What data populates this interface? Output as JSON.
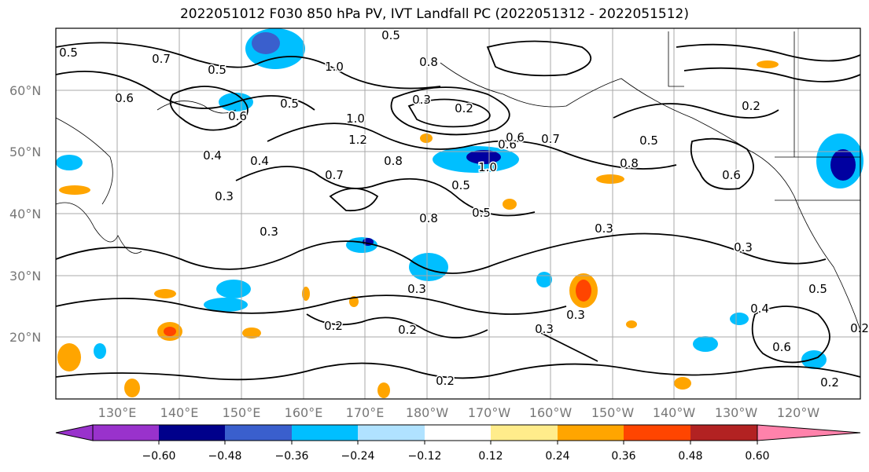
{
  "title": "2022051012 F030 850 hPa PV, IVT Landfall PC (2022051312 - 2022051512)",
  "map": {
    "lat_labels": [
      "60°N",
      "50°N",
      "40°N",
      "30°N",
      "20°N"
    ],
    "lon_labels": [
      "130°E",
      "140°E",
      "150°E",
      "160°E",
      "170°E",
      "180°W",
      "170°W",
      "160°W",
      "150°W",
      "140°W",
      "130°W",
      "120°W"
    ],
    "contour_labels": [
      "0.5",
      "0.7",
      "0.5",
      "0.6",
      "1.0",
      "0.5",
      "0.6",
      "1.0",
      "0.8",
      "0.3",
      "0.2",
      "0.5",
      "0.6",
      "0.7",
      "0.2",
      "0.4",
      "1.2",
      "0.4",
      "0.3",
      "0.8",
      "0.3",
      "0.7",
      "0.5",
      "1.0",
      "0.8",
      "0.5",
      "0.6",
      "0.6",
      "0.8",
      "0.3",
      "0.5",
      "0.3",
      "0.3",
      "0.3",
      "0.5",
      "0.2",
      "0.2",
      "0.3",
      "0.2",
      "0.2",
      "0.2",
      "0.6",
      "0.4"
    ],
    "fill_colors": {
      "neg_strong": "#0000a0",
      "neg_mid": "#3a5fcd",
      "neg_light": "#00bfff",
      "neg_pale": "#afe0ff",
      "pos_light": "#ffeb7f",
      "pos_mid": "#ffa500",
      "pos_strong": "#ff4500",
      "pos_dark": "#b22222"
    }
  },
  "colorbar": {
    "ticks": [
      "−0.60",
      "−0.48",
      "−0.36",
      "−0.24",
      "−0.12",
      "0.12",
      "0.24",
      "0.36",
      "0.48",
      "0.60"
    ],
    "colors": [
      "#9932cc",
      "#00008b",
      "#3a5fcd",
      "#00bfff",
      "#b0e2ff",
      "#ffffff",
      "#ffec8b",
      "#ffa500",
      "#ff4500",
      "#b22222",
      "#ff82ab"
    ]
  }
}
